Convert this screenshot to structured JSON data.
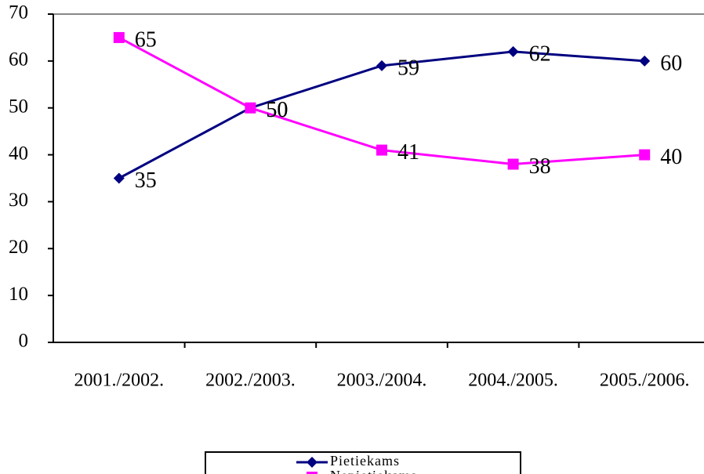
{
  "chart_data": {
    "type": "line",
    "categories": [
      "2001./2002.",
      "2002./2003.",
      "2003./2004.",
      "2004./2005.",
      "2005./2006."
    ],
    "series": [
      {
        "name": "Pietiekams",
        "color": "#000080",
        "marker": "diamond",
        "values": [
          35,
          50,
          59,
          62,
          60
        ]
      },
      {
        "name": "Nepietiekams",
        "color": "#ff00ff",
        "marker": "square",
        "values": [
          65,
          50,
          41,
          38,
          40
        ]
      }
    ],
    "ylim": [
      0,
      70
    ],
    "yticks": [
      0,
      10,
      20,
      30,
      40,
      50,
      60,
      70
    ],
    "legend": "bottom"
  }
}
